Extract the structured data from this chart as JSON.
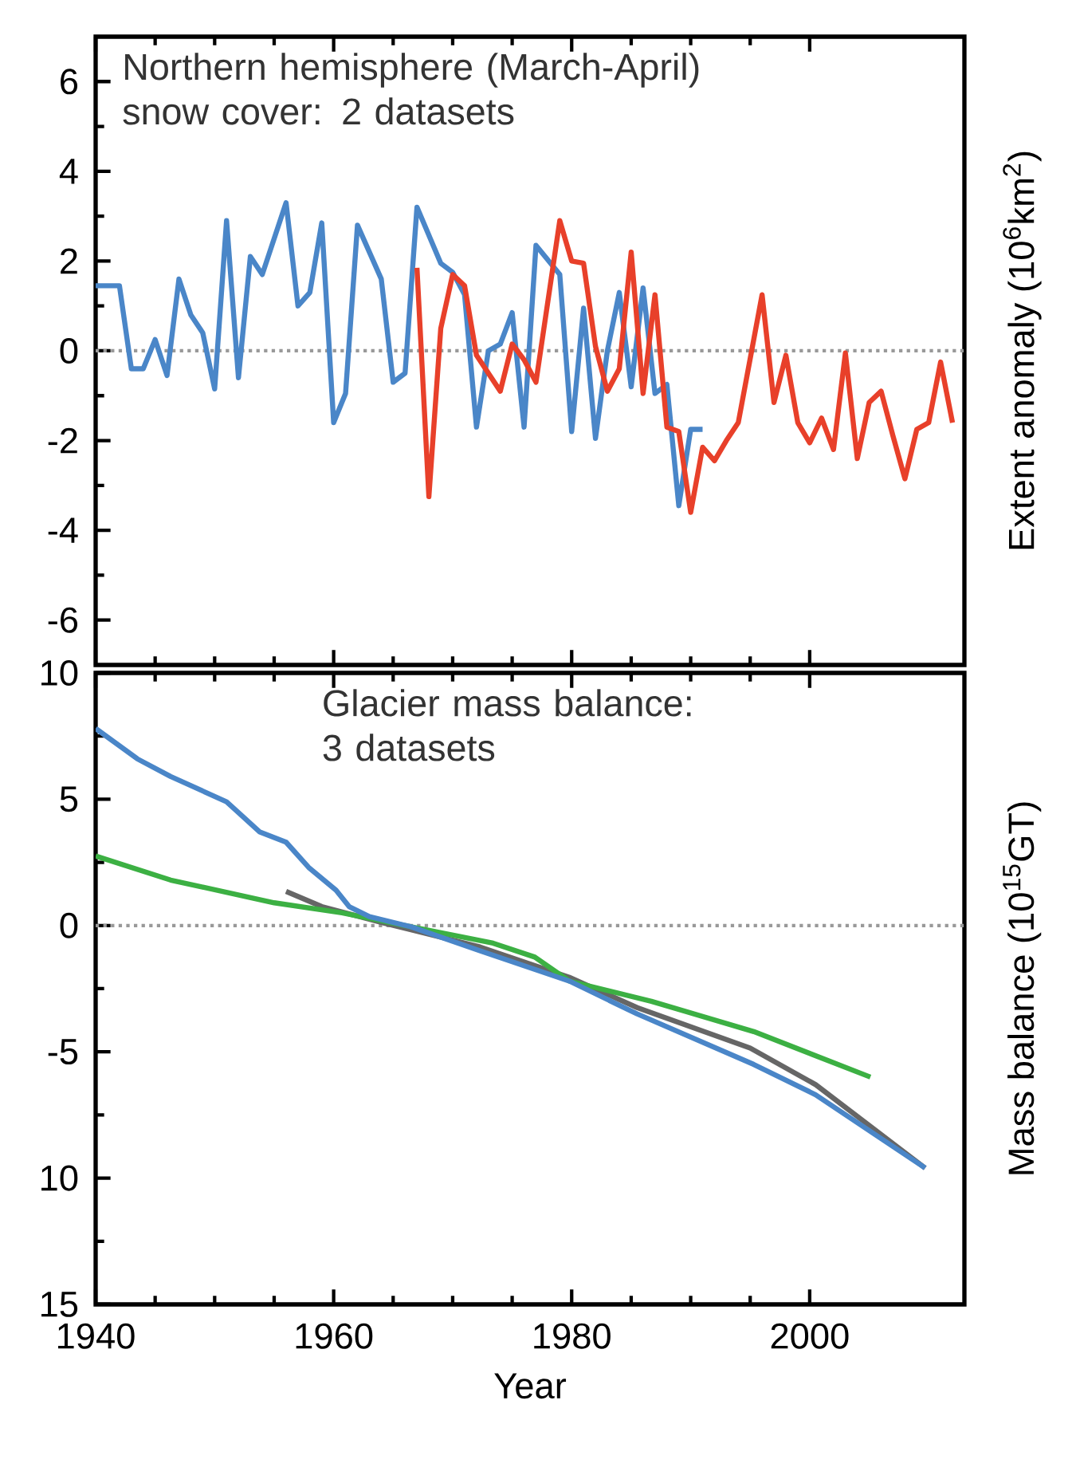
{
  "chart_data": [
    {
      "type": "line",
      "annotations": [
        "Northern hemisphere (March-April) snow cover: 2 datasets"
      ],
      "ylabel": "Extent anomaly (10$^{6}$km$^{2}$)",
      "xlim": [
        1940,
        2013
      ],
      "ylim": [
        -7,
        7
      ],
      "xticks": [
        {
          "value": 1940,
          "label": null
        },
        {
          "value": 1960,
          "label": null
        },
        {
          "value": 1980,
          "label": null
        },
        {
          "value": 2000,
          "label": null
        }
      ],
      "yticks": [
        -6,
        -4,
        -2,
        0,
        2,
        4,
        6
      ],
      "tick_labels": "y",
      "ref_lines": [
        {
          "axis": "y",
          "value": 0,
          "color": "#999999",
          "line_style": "dotted"
        }
      ],
      "series": [
        {
          "color": "#4a86c8",
          "x": [
            1940,
            1942,
            1943,
            1944,
            1945,
            1946,
            1947,
            1948,
            1949,
            1950,
            1951,
            1952,
            1953,
            1954,
            1956,
            1957,
            1958,
            1959,
            1960,
            1961,
            1962,
            1964,
            1965,
            1966,
            1967,
            1969,
            1970,
            1971,
            1972,
            1973,
            1974,
            1975,
            1976,
            1977,
            1979,
            1980,
            1981,
            1982,
            1983,
            1984,
            1985,
            1986,
            1987,
            1988,
            1989,
            1990,
            1991
          ],
          "values": [
            1.45,
            1.45,
            -0.4,
            -0.4,
            0.25,
            -0.55,
            1.6,
            0.8,
            0.4,
            -0.85,
            2.9,
            -0.6,
            2.1,
            1.7,
            3.3,
            1.0,
            1.3,
            2.85,
            -1.6,
            -0.95,
            2.8,
            1.6,
            -0.7,
            -0.5,
            3.2,
            1.95,
            1.75,
            1.25,
            -1.7,
            0,
            0.15,
            0.85,
            -1.7,
            2.35,
            1.7,
            -1.8,
            0.95,
            -1.95,
            0,
            1.3,
            -0.8,
            1.4,
            -0.95,
            -0.75,
            -3.45,
            -1.75,
            -1.75
          ]
        },
        {
          "color": "#e8402a",
          "x": [
            1967,
            1968,
            1969,
            1970,
            1971,
            1972,
            1974,
            1975,
            1976,
            1977,
            1979,
            1980,
            1981,
            1982,
            1983,
            1984,
            1985,
            1986,
            1987,
            1988,
            1989,
            1990,
            1991,
            1992,
            1993,
            1994,
            1996,
            1997,
            1998,
            1999,
            2000,
            2001,
            2002,
            2003,
            2004,
            2005,
            2006,
            2007,
            2008,
            2009,
            2010,
            2011,
            2012
          ],
          "values": [
            1.85,
            -3.25,
            0.5,
            1.7,
            1.45,
            -0.1,
            -0.9,
            0.15,
            -0.2,
            -0.7,
            2.9,
            2.0,
            1.95,
            0.1,
            -0.9,
            -0.4,
            2.2,
            -0.95,
            1.25,
            -1.7,
            -1.8,
            -3.6,
            -2.15,
            -2.45,
            -2.0,
            -1.6,
            1.25,
            -1.15,
            -0.1,
            -1.6,
            -2.05,
            -1.5,
            -2.2,
            -0.05,
            -2.4,
            -1.15,
            -0.9,
            -1.9,
            -2.85,
            -1.75,
            -1.6,
            -0.25,
            -1.6
          ]
        }
      ]
    },
    {
      "type": "line",
      "annotations": [
        "Glacier mass balance: 3 datasets"
      ],
      "xlabel": "Year",
      "ylabel": "Mass balance (10$^{15}$GT)",
      "xlim": [
        1940,
        2013
      ],
      "ylim": [
        -15,
        10
      ],
      "xticks": [
        1940,
        1960,
        1980,
        2000
      ],
      "yticks": [
        10,
        5,
        0,
        -5,
        {
          "value": -10,
          "label": "10"
        },
        {
          "value": -15,
          "label": "15"
        }
      ],
      "ref_lines": [
        {
          "axis": "y",
          "value": 0,
          "color": "#999999",
          "line_style": "dotted"
        }
      ],
      "series": [
        {
          "color": "#666666",
          "x": [
            1956,
            1959,
            1964.2,
            1972.3,
            1979.8,
            1985.5,
            1995,
            2000.5,
            2009.7
          ],
          "values": [
            1.35,
            0.75,
            0.1,
            -0.85,
            -2.05,
            -3.25,
            -4.85,
            -6.3,
            -9.6
          ]
        },
        {
          "color": "#3cb043",
          "x": [
            1940,
            1946.3,
            1955,
            1960.7,
            1966.5,
            1973.4,
            1976.9,
            1979.8,
            1986.7,
            1995.3,
            2005.1
          ],
          "values": [
            2.75,
            1.8,
            0.9,
            0.5,
            -0.05,
            -0.7,
            -1.25,
            -2.2,
            -3.0,
            -4.2,
            -6.0
          ]
        },
        {
          "color": "#4a86c8",
          "x": [
            1940,
            1943.5,
            1946.3,
            1951,
            1953.8,
            1956,
            1957.9,
            1960.2,
            1961.3,
            1963,
            1966.5,
            1972.3,
            1979.8,
            1985.5,
            1995.3,
            2000.5,
            2009.7
          ],
          "values": [
            7.8,
            6.6,
            5.9,
            4.9,
            3.7,
            3.3,
            2.3,
            1.4,
            0.75,
            0.35,
            -0.05,
            -1.0,
            -2.2,
            -3.5,
            -5.5,
            -6.7,
            -9.6
          ]
        }
      ]
    }
  ]
}
